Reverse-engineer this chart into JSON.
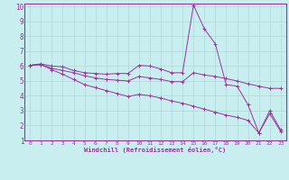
{
  "xlabel": "Windchill (Refroidissement éolien,°C)",
  "bg_color": "#c8eef0",
  "grid_color": "#b0d8d8",
  "line_color": "#993399",
  "spine_color": "#993399",
  "xlim": [
    -0.5,
    23.5
  ],
  "ylim": [
    1,
    10.2
  ],
  "xticks": [
    0,
    1,
    2,
    3,
    4,
    5,
    6,
    7,
    8,
    9,
    10,
    11,
    12,
    13,
    14,
    15,
    16,
    17,
    18,
    19,
    20,
    21,
    22,
    23
  ],
  "yticks": [
    1,
    2,
    3,
    4,
    5,
    6,
    7,
    8,
    9,
    10
  ],
  "line1_x": [
    0,
    1,
    2,
    3,
    4,
    5,
    6,
    7,
    8,
    9,
    10,
    11,
    12,
    13,
    14,
    15,
    16,
    17,
    18,
    19,
    20,
    21,
    22,
    23
  ],
  "line1_y": [
    6.05,
    6.15,
    6.0,
    5.95,
    5.7,
    5.55,
    5.5,
    5.45,
    5.5,
    5.5,
    6.05,
    6.0,
    5.8,
    5.55,
    5.55,
    10.1,
    8.5,
    7.5,
    4.75,
    4.65,
    3.4,
    1.5,
    3.0,
    1.7
  ],
  "line2_x": [
    0,
    1,
    2,
    3,
    4,
    5,
    6,
    7,
    8,
    9,
    10,
    11,
    12,
    13,
    14,
    15,
    16,
    17,
    18,
    19,
    20,
    21,
    22,
    23
  ],
  "line2_y": [
    6.05,
    6.1,
    5.85,
    5.7,
    5.55,
    5.35,
    5.2,
    5.1,
    5.05,
    5.0,
    5.3,
    5.2,
    5.1,
    4.95,
    4.95,
    5.55,
    5.4,
    5.3,
    5.15,
    5.0,
    4.8,
    4.65,
    4.5,
    4.5
  ],
  "line3_x": [
    0,
    1,
    2,
    3,
    4,
    5,
    6,
    7,
    8,
    9,
    10,
    11,
    12,
    13,
    14,
    15,
    16,
    17,
    18,
    19,
    20,
    21,
    22,
    23
  ],
  "line3_y": [
    6.05,
    6.1,
    5.75,
    5.45,
    5.1,
    4.75,
    4.55,
    4.35,
    4.15,
    3.95,
    4.1,
    4.0,
    3.85,
    3.65,
    3.5,
    3.3,
    3.1,
    2.9,
    2.7,
    2.55,
    2.35,
    1.5,
    2.8,
    1.6
  ]
}
